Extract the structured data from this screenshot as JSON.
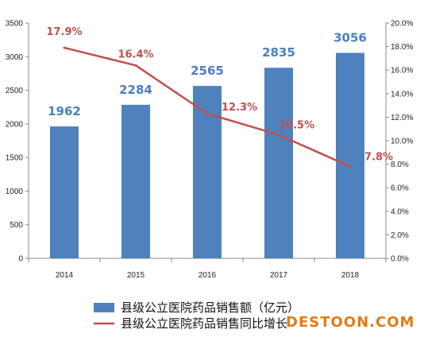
{
  "chart_data": {
    "type": "bar",
    "categories": [
      "2014",
      "2015",
      "2016",
      "2017",
      "2018"
    ],
    "series": [
      {
        "name": "县级公立医院药品销售额（亿元）",
        "type": "bar",
        "axis": "left",
        "values": [
          1962,
          2284,
          2565,
          2835,
          3056
        ],
        "value_labels": [
          "1962",
          "2284",
          "2565",
          "2835",
          "3056"
        ],
        "color": "#4f81bd",
        "label_color": "#4a7fbf"
      },
      {
        "name": "县级公立医院药品销售同比增长",
        "type": "line",
        "axis": "right",
        "values": [
          17.9,
          16.4,
          12.3,
          10.5,
          7.8
        ],
        "value_labels": [
          "17.9%",
          "16.4%",
          "12.3%",
          "10.5%",
          "7.8%"
        ],
        "color": "#c0504d",
        "label_color": "#c0504d"
      }
    ],
    "left_axis": {
      "ylim": [
        0,
        3500
      ],
      "ticks": [
        "0",
        "500",
        "1000",
        "1500",
        "2000",
        "2500",
        "3000",
        "3500"
      ]
    },
    "right_axis": {
      "ylim": [
        0,
        20
      ],
      "ticks": [
        "0.0%",
        "2.0%",
        "4.0%",
        "6.0%",
        "8.0%",
        "10.0%",
        "12.0%",
        "14.0%",
        "16.0%",
        "18.0%",
        "20.0%"
      ]
    },
    "grid": false,
    "legend_placement": "bottom"
  },
  "watermark": "DESTOON.COM",
  "colors": {
    "axis": "#888888",
    "tick_text": "#222222",
    "watermark": "#e07b14"
  }
}
